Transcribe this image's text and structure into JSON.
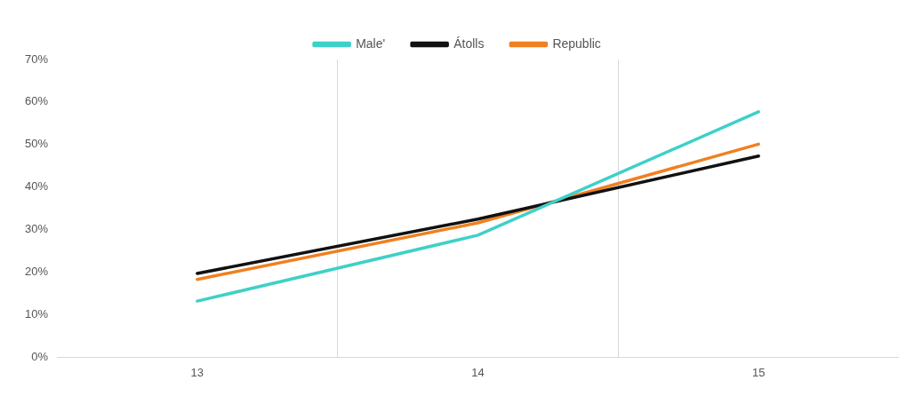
{
  "chart_data": {
    "type": "line",
    "categories": [
      "13",
      "14",
      "15"
    ],
    "series": [
      {
        "name": "Male'",
        "color": "#3fd0c9",
        "values": [
          13.2,
          28.7,
          57.7
        ]
      },
      {
        "name": "Átolls",
        "color": "#111111",
        "values": [
          19.7,
          32.5,
          47.3
        ]
      },
      {
        "name": "Republic",
        "color": "#f08020",
        "values": [
          18.3,
          31.6,
          50.1
        ]
      }
    ],
    "ylim": [
      0,
      70
    ],
    "yticks": [
      {
        "value": 0,
        "label": "0%"
      },
      {
        "value": 10,
        "label": "10%"
      },
      {
        "value": 20,
        "label": "20%"
      },
      {
        "value": 30,
        "label": "30%"
      },
      {
        "value": 40,
        "label": "40%"
      },
      {
        "value": 50,
        "label": "50%"
      },
      {
        "value": 60,
        "label": "60%"
      },
      {
        "value": 70,
        "label": "70%"
      }
    ],
    "grid": "x",
    "legend": "top",
    "marker": "none",
    "line_style": "solid"
  }
}
